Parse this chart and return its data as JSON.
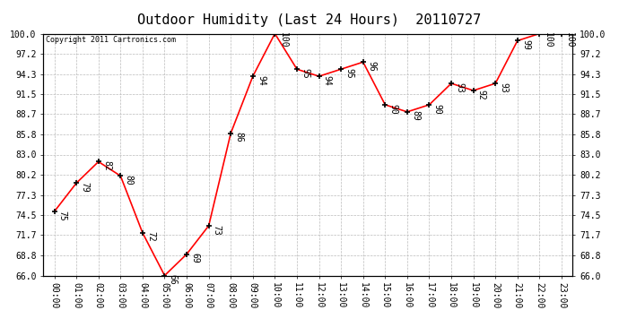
{
  "title": "Outdoor Humidity (Last 24 Hours)  20110727",
  "copyright": "Copyright 2011 Cartronics.com",
  "hours": [
    "00:00",
    "01:00",
    "02:00",
    "03:00",
    "04:00",
    "05:00",
    "06:00",
    "07:00",
    "08:00",
    "09:00",
    "10:00",
    "11:00",
    "12:00",
    "13:00",
    "14:00",
    "15:00",
    "16:00",
    "17:00",
    "18:00",
    "19:00",
    "20:00",
    "21:00",
    "22:00",
    "23:00"
  ],
  "values": [
    75,
    79,
    82,
    80,
    72,
    66,
    69,
    73,
    86,
    94,
    100,
    95,
    94,
    95,
    96,
    90,
    89,
    90,
    93,
    92,
    93,
    99,
    100,
    100
  ],
  "ylim": [
    66.0,
    100.0
  ],
  "yticks": [
    66.0,
    68.8,
    71.7,
    74.5,
    77.3,
    80.2,
    83.0,
    85.8,
    88.7,
    91.5,
    94.3,
    97.2,
    100.0
  ],
  "line_color": "red",
  "marker_color": "black",
  "bg_color": "white",
  "grid_color": "#bbbbbb",
  "title_fontsize": 11,
  "tick_fontsize": 7,
  "annotation_fontsize": 7,
  "copyright_fontsize": 6
}
